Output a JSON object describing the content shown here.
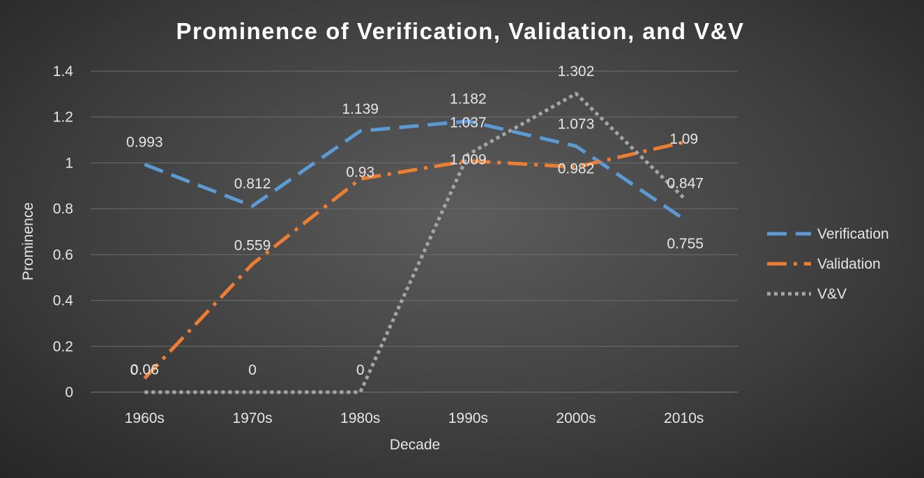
{
  "chart_data": {
    "type": "line",
    "title": "Prominence of Verification, Validation, and V&V",
    "xlabel": "Decade",
    "ylabel": "Prominence",
    "categories": [
      "1960s",
      "1970s",
      "1980s",
      "1990s",
      "2000s",
      "2010s"
    ],
    "ylim": [
      0,
      1.4
    ],
    "yticks": [
      "0",
      "0.2",
      "0.4",
      "0.6",
      "0.8",
      "1",
      "1.2",
      "1.4"
    ],
    "grid": true,
    "legend_position": "right",
    "series": [
      {
        "name": "Verification",
        "values": [
          0.993,
          0.812,
          1.139,
          1.182,
          1.073,
          0.755
        ],
        "labels": [
          "0.993",
          "0.812",
          "1.139",
          "1.182",
          "1.073",
          "0.755"
        ],
        "color": "#5b9bd5",
        "dash": "long-dash"
      },
      {
        "name": "Validation",
        "values": [
          0.06,
          0.559,
          0.93,
          1.009,
          0.982,
          1.09
        ],
        "labels": [
          "0.06",
          "0.559",
          "0.93",
          "1.009",
          "0.982",
          "1.09"
        ],
        "color": "#ed7d31",
        "dash": "long-dash-dot"
      },
      {
        "name": "V&V",
        "values": [
          0,
          0,
          0,
          1.037,
          1.302,
          0.847
        ],
        "labels": [
          "0",
          "0",
          "0",
          "1.037",
          "1.302",
          "0.847"
        ],
        "color": "#a5a5a5",
        "dash": "dotted"
      }
    ]
  }
}
